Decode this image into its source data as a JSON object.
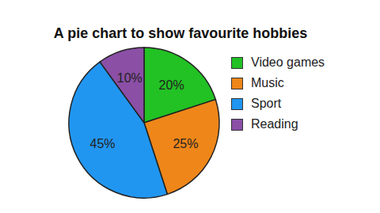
{
  "chart_data": {
    "type": "pie",
    "title": "A pie chart to show favourite hobbies",
    "categories": [
      "Video games",
      "Music",
      "Sport",
      "Reading"
    ],
    "values": [
      20,
      25,
      45,
      10
    ],
    "value_labels": [
      "20%",
      "25%",
      "45%",
      "10%"
    ],
    "colors": [
      "#22c124",
      "#ef8619",
      "#2196f0",
      "#8b4fa6"
    ],
    "data_labels": true,
    "legend": "right"
  }
}
